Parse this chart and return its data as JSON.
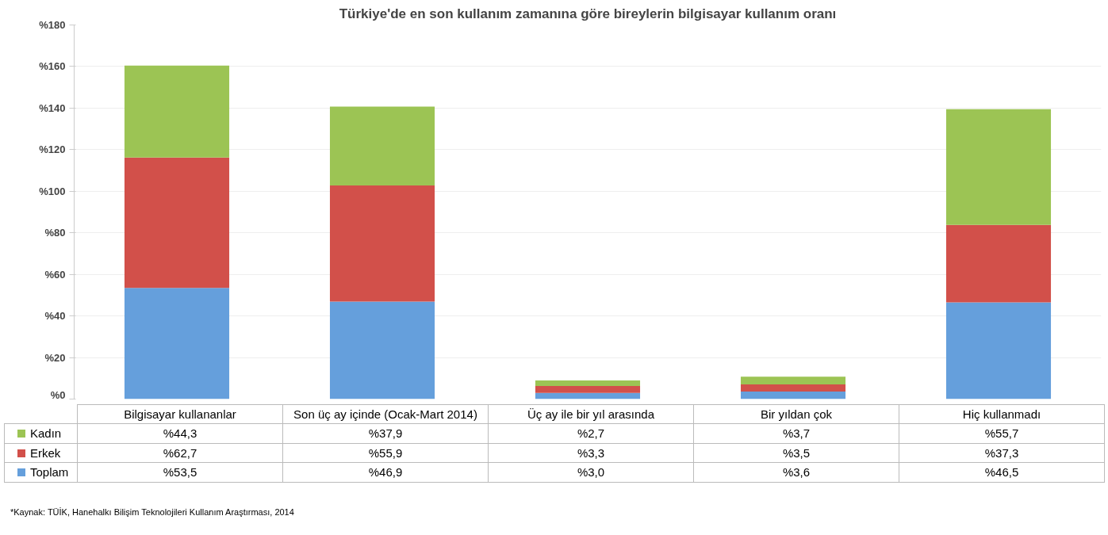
{
  "chart_data": {
    "type": "bar",
    "stacked": true,
    "title": "Türkiye'de en son kullanım zamanına göre bireylerin bilgisayar kullanım oranı",
    "categories": [
      "Bilgisayar  kullananlar",
      "Son üç ay içinde (Ocak-Mart 2014)",
      "Üç ay ile bir yıl arasında",
      "Bir yıldan çok",
      "Hiç kullanmadı"
    ],
    "series": [
      {
        "name": "Toplam",
        "color": "#659fdc",
        "values": [
          53.5,
          46.9,
          3.0,
          3.6,
          46.5
        ],
        "value_labels": [
          "%53,5",
          "%46,9",
          "%3,0",
          "%3,6",
          "%46,5"
        ]
      },
      {
        "name": "Erkek",
        "color": "#d2504a",
        "values": [
          62.7,
          55.9,
          3.3,
          3.5,
          37.3
        ],
        "value_labels": [
          "%62,7",
          "%55,9",
          "%3,3",
          "%3,5",
          "%37,3"
        ]
      },
      {
        "name": "Kadın",
        "color": "#9cc454",
        "values": [
          44.3,
          37.9,
          2.7,
          3.7,
          55.7
        ],
        "value_labels": [
          "%44,3",
          "%37,9",
          "%2,7",
          "%3,7",
          "%55,7"
        ]
      }
    ],
    "ylim": [
      0,
      180
    ],
    "yticks": [
      {
        "value": 0,
        "label": "%0"
      },
      {
        "value": 20,
        "label": "%20"
      },
      {
        "value": 40,
        "label": "%40"
      },
      {
        "value": 60,
        "label": "%60"
      },
      {
        "value": 80,
        "label": "%80"
      },
      {
        "value": 100,
        "label": "%100"
      },
      {
        "value": 120,
        "label": "%120"
      },
      {
        "value": 140,
        "label": "%140"
      },
      {
        "value": 160,
        "label": "%160"
      },
      {
        "value": 180,
        "label": "%180"
      }
    ],
    "grid": "y",
    "legend": "bottom",
    "annotations": [
      "*Kaynak: TÜİK, Hanehalkı Bilişim Teknolojileri Kullanım Araştırması, 2014"
    ]
  }
}
